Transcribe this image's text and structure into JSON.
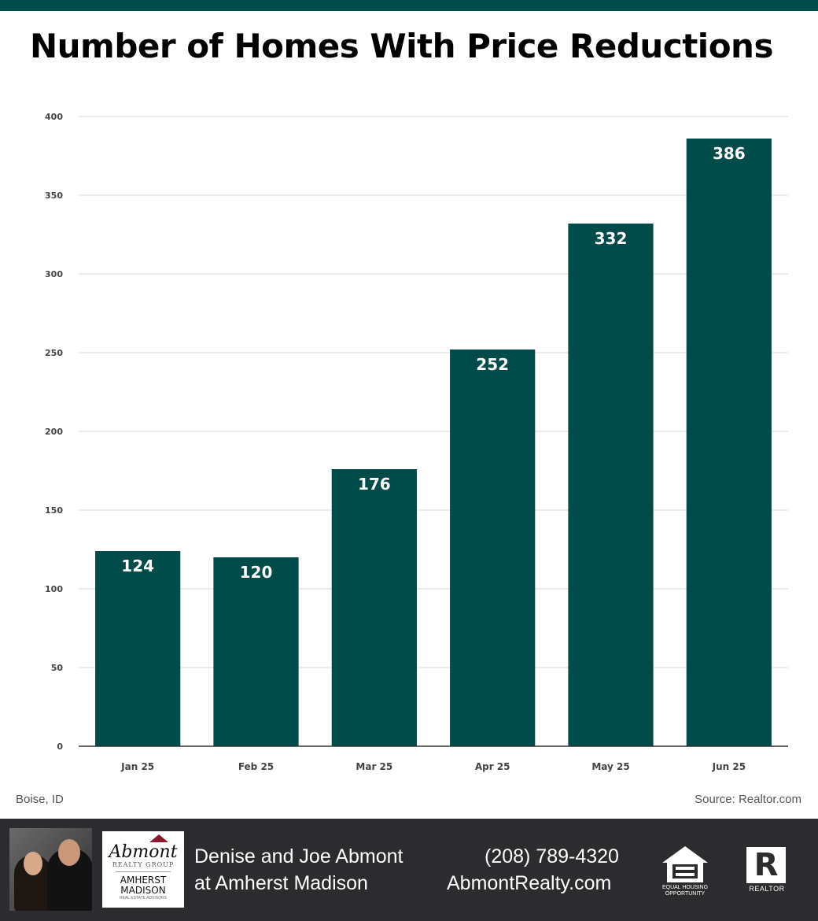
{
  "title": "Number of Homes With Price Reductions",
  "location": "Boise, ID",
  "source": "Source: Realtor.com",
  "colors": {
    "bar": "#024b4b",
    "grid": "#d9d9d9",
    "footer_bg": "#2c2c2e"
  },
  "chart_data": {
    "type": "bar",
    "title": "Number of Homes With Price Reductions",
    "categories": [
      "Jan 25",
      "Feb 25",
      "Mar 25",
      "Apr 25",
      "May 25",
      "Jun 25"
    ],
    "values": [
      124,
      120,
      176,
      252,
      332,
      386
    ],
    "data_labels": [
      "124",
      "120",
      "176",
      "252",
      "332",
      "386"
    ],
    "ylim": [
      0,
      400
    ],
    "yticks": [
      0,
      50,
      100,
      150,
      200,
      250,
      300,
      350,
      400
    ],
    "grid": true,
    "xlabel": "",
    "ylabel": ""
  },
  "footer": {
    "agent_name": "Denise and Joe Abmont",
    "agent_firm": "at Amherst Madison",
    "phone": "(208) 789-4320",
    "website": "AbmontRealty.com",
    "logo": {
      "script": "Abmont",
      "group": "REALTY GROUP",
      "brand_line1": "AMHERST",
      "brand_line2": "MADISON",
      "brand_sub": "REAL ESTATE ADVISORS"
    },
    "eho_label": "EQUAL HOUSING OPPORTUNITY",
    "realtor_label": "REALTOR",
    "realtor_mark": "R",
    "icons": [
      "agent-photo",
      "equal-housing-icon",
      "realtor-icon"
    ]
  }
}
